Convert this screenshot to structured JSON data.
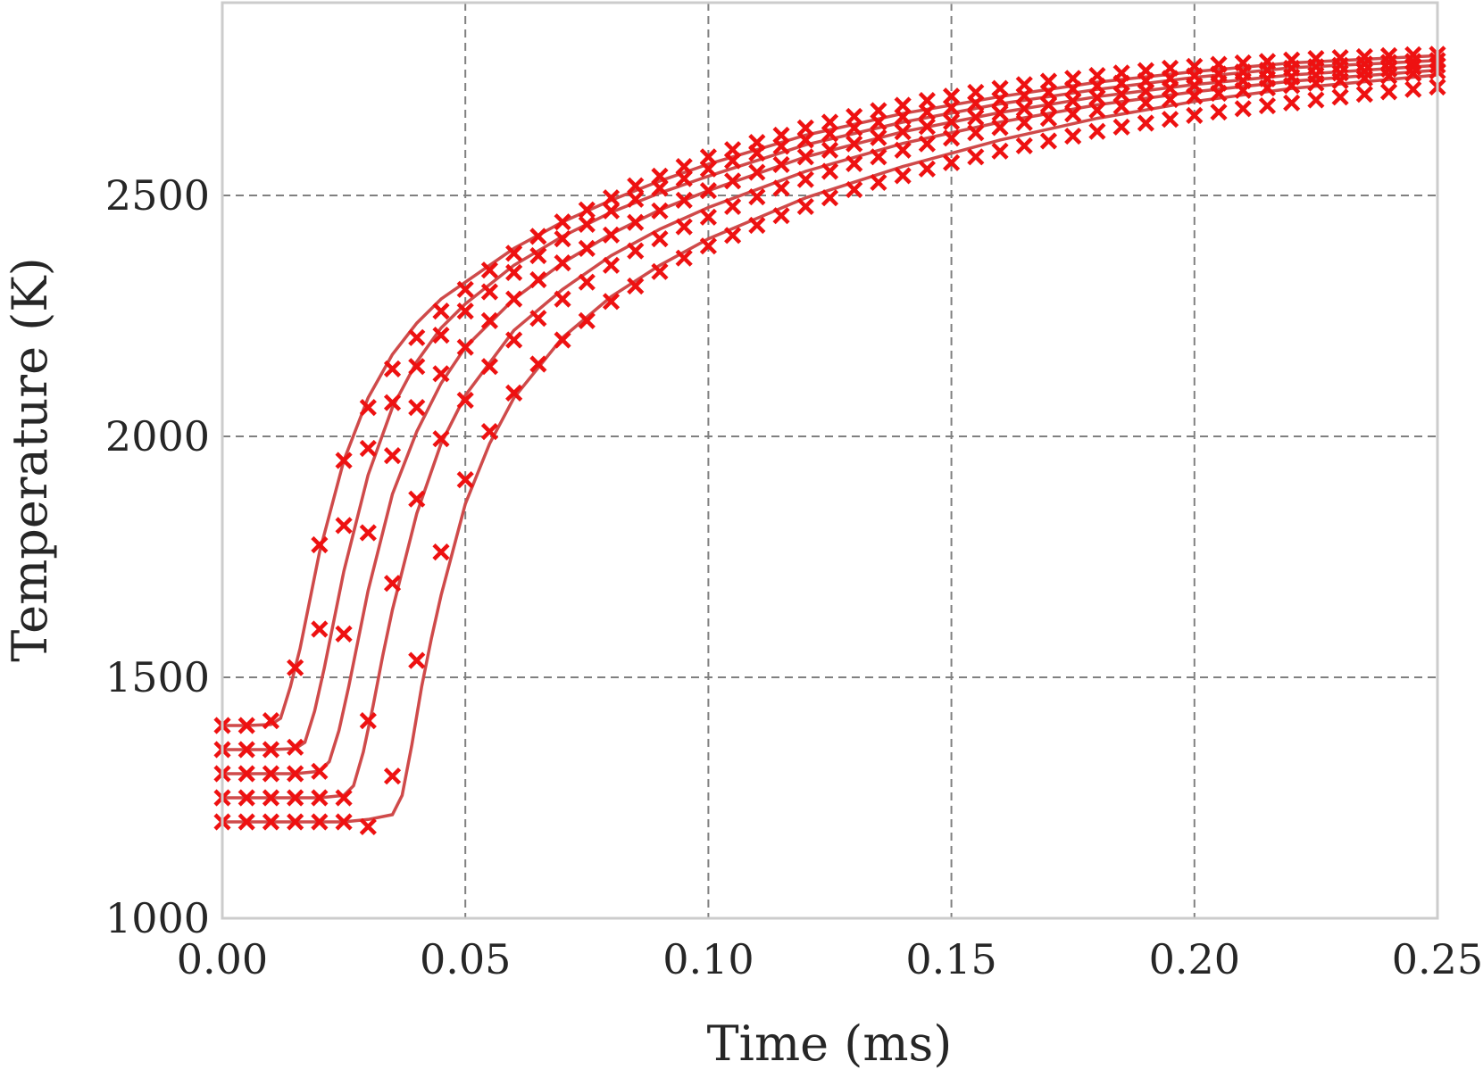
{
  "chart_data": {
    "type": "line",
    "title": "",
    "xlabel": "Time (ms)",
    "ylabel": "Temperature (K)",
    "xlim": [
      0.0,
      0.25
    ],
    "ylim": [
      1000,
      2900
    ],
    "xticks": [
      0.0,
      0.05,
      0.1,
      0.15,
      0.2,
      0.25
    ],
    "xtick_labels": [
      "0.00",
      "0.05",
      "0.10",
      "0.15",
      "0.20",
      "0.25"
    ],
    "yticks": [
      1000,
      1500,
      2000,
      2500
    ],
    "ytick_labels": [
      "1000",
      "1500",
      "2000",
      "2500"
    ],
    "grid": true,
    "line_color": "#cf4a4a",
    "marker_color": "#ee1111",
    "series": [
      {
        "line_x": [
          0.0,
          0.005,
          0.01,
          0.012,
          0.014,
          0.016,
          0.018,
          0.02,
          0.025,
          0.03,
          0.035,
          0.04,
          0.045,
          0.05,
          0.06,
          0.07,
          0.08,
          0.09,
          0.1,
          0.12,
          0.14,
          0.16,
          0.18,
          0.2,
          0.22,
          0.25
        ],
        "line_y": [
          1400,
          1400,
          1402,
          1415,
          1480,
          1560,
          1660,
          1760,
          1950,
          2080,
          2170,
          2235,
          2285,
          2320,
          2390,
          2445,
          2490,
          2530,
          2565,
          2625,
          2670,
          2705,
          2735,
          2757,
          2775,
          2790
        ],
        "marker_x": [
          0.0,
          0.005,
          0.01,
          0.015,
          0.02,
          0.025,
          0.03,
          0.035,
          0.04,
          0.045,
          0.05,
          0.055,
          0.06,
          0.065,
          0.07,
          0.075,
          0.08,
          0.085,
          0.09,
          0.095,
          0.1,
          0.105,
          0.11,
          0.115,
          0.12,
          0.125,
          0.13,
          0.135,
          0.14,
          0.145,
          0.15,
          0.155,
          0.16,
          0.165,
          0.17,
          0.175,
          0.18,
          0.185,
          0.19,
          0.195,
          0.2,
          0.205,
          0.21,
          0.215,
          0.22,
          0.225,
          0.23,
          0.235,
          0.24,
          0.245,
          0.25
        ],
        "marker_y": [
          1400,
          1400,
          1410,
          1520,
          1775,
          1950,
          2060,
          2140,
          2205,
          2260,
          2305,
          2345,
          2380,
          2415,
          2445,
          2470,
          2495,
          2520,
          2540,
          2560,
          2580,
          2595,
          2610,
          2625,
          2640,
          2652,
          2664,
          2676,
          2687,
          2697,
          2706,
          2714,
          2722,
          2730,
          2737,
          2743,
          2749,
          2754,
          2759,
          2764,
          2768,
          2772,
          2775,
          2778,
          2781,
          2784,
          2786,
          2788,
          2790,
          2792,
          2793
        ]
      },
      {
        "line_x": [
          0.0,
          0.005,
          0.01,
          0.015,
          0.017,
          0.019,
          0.021,
          0.023,
          0.025,
          0.03,
          0.035,
          0.04,
          0.045,
          0.05,
          0.06,
          0.07,
          0.08,
          0.09,
          0.1,
          0.12,
          0.14,
          0.16,
          0.18,
          0.2,
          0.22,
          0.25
        ],
        "line_y": [
          1350,
          1350,
          1350,
          1352,
          1365,
          1430,
          1520,
          1620,
          1720,
          1920,
          2060,
          2155,
          2225,
          2275,
          2355,
          2415,
          2465,
          2505,
          2540,
          2605,
          2652,
          2690,
          2720,
          2745,
          2765,
          2780
        ],
        "marker_x": [
          0.0,
          0.005,
          0.01,
          0.015,
          0.02,
          0.025,
          0.03,
          0.035,
          0.04,
          0.045,
          0.05,
          0.055,
          0.06,
          0.065,
          0.07,
          0.075,
          0.08,
          0.085,
          0.09,
          0.095,
          0.1,
          0.105,
          0.11,
          0.115,
          0.12,
          0.125,
          0.13,
          0.135,
          0.14,
          0.145,
          0.15,
          0.155,
          0.16,
          0.165,
          0.17,
          0.175,
          0.18,
          0.185,
          0.19,
          0.195,
          0.2,
          0.205,
          0.21,
          0.215,
          0.22,
          0.225,
          0.23,
          0.235,
          0.24,
          0.245,
          0.25
        ],
        "marker_y": [
          1350,
          1350,
          1350,
          1355,
          1600,
          1815,
          1975,
          2070,
          2145,
          2210,
          2260,
          2300,
          2340,
          2375,
          2410,
          2440,
          2468,
          2492,
          2515,
          2535,
          2555,
          2572,
          2588,
          2602,
          2615,
          2628,
          2640,
          2652,
          2663,
          2673,
          2682,
          2691,
          2699,
          2707,
          2714,
          2721,
          2727,
          2733,
          2738,
          2743,
          2748,
          2752,
          2756,
          2760,
          2764,
          2767,
          2770,
          2773,
          2776,
          2778,
          2780
        ]
      },
      {
        "line_x": [
          0.0,
          0.005,
          0.01,
          0.015,
          0.02,
          0.022,
          0.024,
          0.026,
          0.028,
          0.03,
          0.035,
          0.04,
          0.045,
          0.05,
          0.06,
          0.07,
          0.08,
          0.09,
          0.1,
          0.12,
          0.14,
          0.16,
          0.18,
          0.2,
          0.22,
          0.25
        ],
        "line_y": [
          1300,
          1300,
          1300,
          1300,
          1305,
          1325,
          1390,
          1480,
          1580,
          1680,
          1880,
          2010,
          2110,
          2185,
          2285,
          2360,
          2420,
          2470,
          2510,
          2580,
          2632,
          2672,
          2705,
          2730,
          2750,
          2770
        ],
        "marker_x": [
          0.0,
          0.005,
          0.01,
          0.015,
          0.02,
          0.025,
          0.03,
          0.035,
          0.04,
          0.045,
          0.05,
          0.055,
          0.06,
          0.065,
          0.07,
          0.075,
          0.08,
          0.085,
          0.09,
          0.095,
          0.1,
          0.105,
          0.11,
          0.115,
          0.12,
          0.125,
          0.13,
          0.135,
          0.14,
          0.145,
          0.15,
          0.155,
          0.16,
          0.165,
          0.17,
          0.175,
          0.18,
          0.185,
          0.19,
          0.195,
          0.2,
          0.205,
          0.21,
          0.215,
          0.22,
          0.225,
          0.23,
          0.235,
          0.24,
          0.245,
          0.25
        ],
        "marker_y": [
          1300,
          1300,
          1300,
          1300,
          1305,
          1590,
          1800,
          1960,
          2060,
          2130,
          2185,
          2240,
          2285,
          2325,
          2360,
          2390,
          2418,
          2444,
          2468,
          2490,
          2510,
          2530,
          2548,
          2564,
          2580,
          2594,
          2607,
          2620,
          2632,
          2643,
          2653,
          2662,
          2671,
          2680,
          2688,
          2696,
          2703,
          2710,
          2716,
          2722,
          2728,
          2733,
          2738,
          2742,
          2746,
          2750,
          2754,
          2758,
          2762,
          2766,
          2770
        ]
      },
      {
        "line_x": [
          0.0,
          0.005,
          0.01,
          0.015,
          0.02,
          0.025,
          0.027,
          0.029,
          0.031,
          0.033,
          0.035,
          0.04,
          0.045,
          0.05,
          0.06,
          0.07,
          0.08,
          0.09,
          0.1,
          0.12,
          0.14,
          0.16,
          0.18,
          0.2,
          0.22,
          0.25
        ],
        "line_y": [
          1250,
          1250,
          1250,
          1250,
          1250,
          1255,
          1275,
          1345,
          1440,
          1545,
          1640,
          1840,
          1985,
          2085,
          2220,
          2305,
          2375,
          2430,
          2475,
          2550,
          2608,
          2652,
          2688,
          2715,
          2737,
          2760
        ],
        "marker_x": [
          0.0,
          0.005,
          0.01,
          0.015,
          0.02,
          0.025,
          0.03,
          0.035,
          0.04,
          0.045,
          0.05,
          0.055,
          0.06,
          0.065,
          0.07,
          0.075,
          0.08,
          0.085,
          0.09,
          0.095,
          0.1,
          0.105,
          0.11,
          0.115,
          0.12,
          0.125,
          0.13,
          0.135,
          0.14,
          0.145,
          0.15,
          0.155,
          0.16,
          0.165,
          0.17,
          0.175,
          0.18,
          0.185,
          0.19,
          0.195,
          0.2,
          0.205,
          0.21,
          0.215,
          0.22,
          0.225,
          0.23,
          0.235,
          0.24,
          0.245,
          0.25
        ],
        "marker_y": [
          1250,
          1250,
          1250,
          1250,
          1250,
          1250,
          1410,
          1695,
          1870,
          1995,
          2075,
          2145,
          2200,
          2245,
          2285,
          2320,
          2355,
          2385,
          2410,
          2435,
          2455,
          2477,
          2497,
          2515,
          2533,
          2550,
          2566,
          2580,
          2594,
          2607,
          2619,
          2630,
          2641,
          2651,
          2660,
          2669,
          2677,
          2685,
          2692,
          2699,
          2706,
          2712,
          2718,
          2723,
          2728,
          2733,
          2738,
          2743,
          2748,
          2753,
          2758
        ]
      },
      {
        "line_x": [
          0.0,
          0.005,
          0.01,
          0.015,
          0.02,
          0.025,
          0.03,
          0.035,
          0.037,
          0.039,
          0.041,
          0.043,
          0.045,
          0.05,
          0.055,
          0.06,
          0.07,
          0.08,
          0.09,
          0.1,
          0.12,
          0.14,
          0.16,
          0.18,
          0.2,
          0.22,
          0.25
        ],
        "line_y": [
          1200,
          1200,
          1200,
          1200,
          1200,
          1200,
          1205,
          1215,
          1255,
          1360,
          1480,
          1580,
          1670,
          1860,
          1985,
          2080,
          2205,
          2290,
          2355,
          2410,
          2495,
          2560,
          2615,
          2660,
          2695,
          2722,
          2750
        ],
        "marker_x": [
          0.0,
          0.005,
          0.01,
          0.015,
          0.02,
          0.025,
          0.03,
          0.035,
          0.04,
          0.045,
          0.05,
          0.055,
          0.06,
          0.065,
          0.07,
          0.075,
          0.08,
          0.085,
          0.09,
          0.095,
          0.1,
          0.105,
          0.11,
          0.115,
          0.12,
          0.125,
          0.13,
          0.135,
          0.14,
          0.145,
          0.15,
          0.155,
          0.16,
          0.165,
          0.17,
          0.175,
          0.18,
          0.185,
          0.19,
          0.195,
          0.2,
          0.205,
          0.21,
          0.215,
          0.22,
          0.225,
          0.23,
          0.235,
          0.24,
          0.245,
          0.25
        ],
        "marker_y": [
          1200,
          1200,
          1200,
          1200,
          1200,
          1200,
          1190,
          1295,
          1535,
          1760,
          1910,
          2010,
          2090,
          2150,
          2200,
          2240,
          2280,
          2312,
          2342,
          2370,
          2395,
          2417,
          2438,
          2458,
          2477,
          2495,
          2512,
          2527,
          2541,
          2555,
          2568,
          2580,
          2592,
          2603,
          2613,
          2623,
          2633,
          2642,
          2650,
          2658,
          2666,
          2673,
          2680,
          2686,
          2692,
          2698,
          2704,
          2710,
          2715,
          2720,
          2725
        ]
      }
    ]
  }
}
